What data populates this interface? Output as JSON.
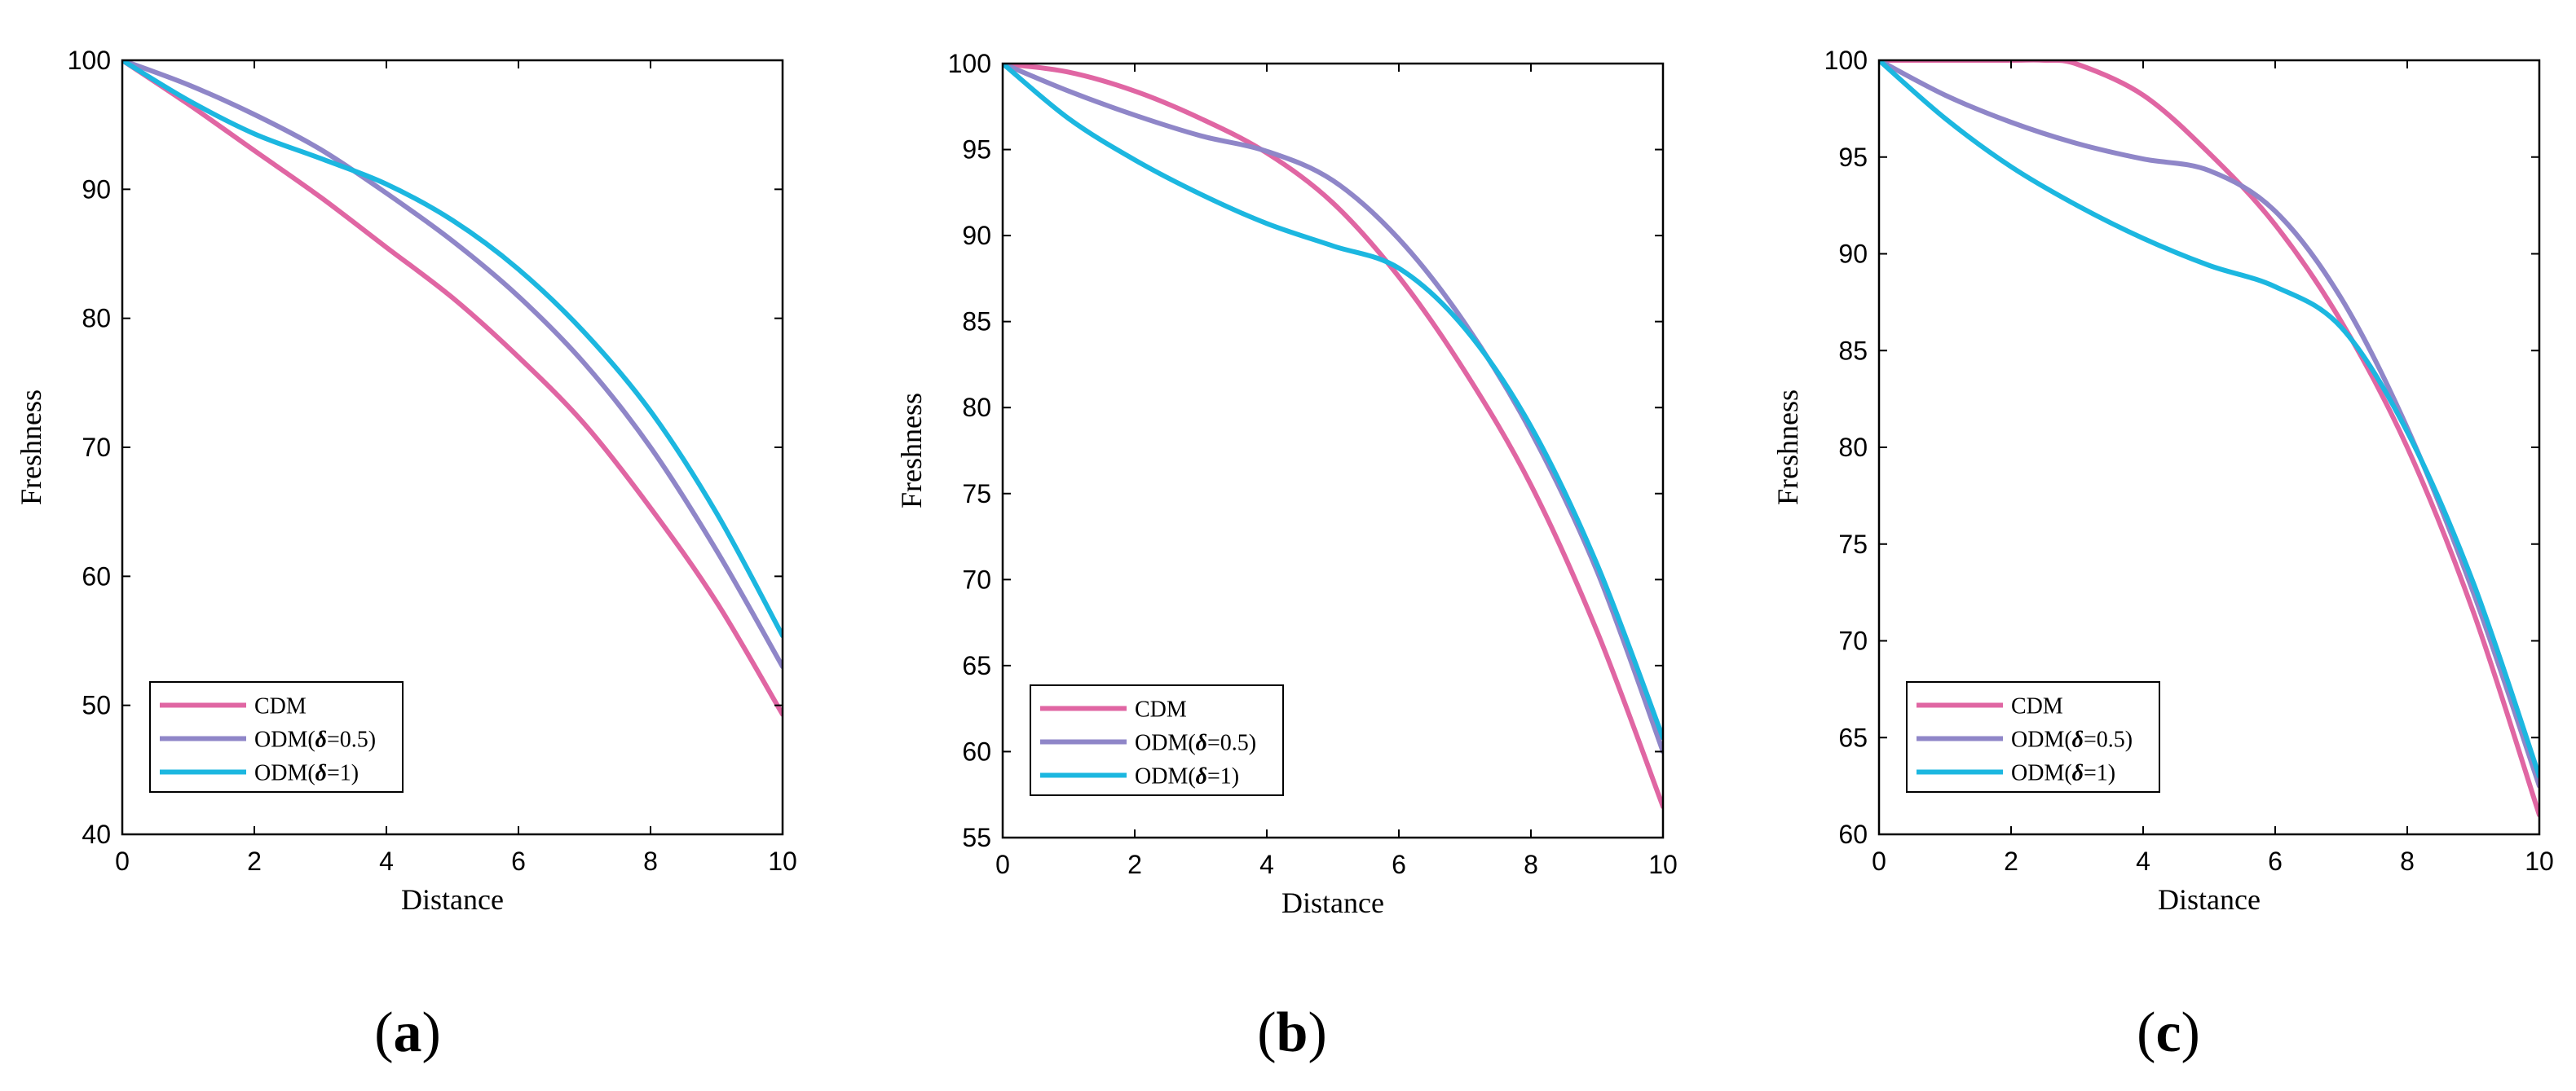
{
  "colors": {
    "CDM": "#e066a3",
    "ODM05": "#8f86c8",
    "ODM1": "#1cb7e0"
  },
  "chart_data": [
    {
      "type": "line",
      "panel_label": "a",
      "xlabel": "Distance",
      "ylabel": "Freshness",
      "xlim": [
        0,
        10
      ],
      "ylim": [
        40,
        100
      ],
      "xticks": [
        0,
        2,
        4,
        6,
        8,
        10
      ],
      "yticks": [
        40,
        50,
        60,
        70,
        80,
        90,
        100
      ],
      "legend_position": "bottom-left",
      "series": [
        {
          "name": "CDM",
          "legend_parts": [
            "CDM"
          ],
          "color_key": "CDM",
          "x": [
            0,
            1,
            2,
            3,
            4,
            5,
            6,
            7,
            8,
            9,
            10
          ],
          "y": [
            100,
            96.6,
            93,
            89.4,
            85.5,
            81.6,
            77,
            71.8,
            65.3,
            58,
            49.3
          ]
        },
        {
          "name": "ODM(δ=0.5)",
          "legend_parts": [
            "ODM(",
            "δ",
            "=0.5)"
          ],
          "color_key": "ODM05",
          "x": [
            0,
            1,
            2,
            3,
            4,
            5,
            6,
            7,
            8,
            9,
            10
          ],
          "y": [
            100,
            98.1,
            95.8,
            93.1,
            89.7,
            86,
            81.7,
            76.5,
            70,
            62,
            53
          ]
        },
        {
          "name": "ODM(δ=1)",
          "legend_parts": [
            "ODM(",
            "δ",
            "=1)"
          ],
          "color_key": "ODM1",
          "x": [
            0,
            1,
            2,
            3,
            4,
            5,
            6,
            7,
            8,
            9,
            10
          ],
          "y": [
            100,
            96.9,
            94.3,
            92.4,
            90.4,
            87.6,
            83.8,
            78.9,
            72.8,
            64.9,
            55.4
          ]
        }
      ]
    },
    {
      "type": "line",
      "panel_label": "b",
      "xlabel": "Distance",
      "ylabel": "Freshness",
      "xlim": [
        0,
        10
      ],
      "ylim": [
        55,
        100
      ],
      "xticks": [
        0,
        2,
        4,
        6,
        8,
        10
      ],
      "yticks": [
        55,
        60,
        65,
        70,
        75,
        80,
        85,
        90,
        95,
        100
      ],
      "legend_position": "bottom-left",
      "series": [
        {
          "name": "CDM",
          "legend_parts": [
            "CDM"
          ],
          "color_key": "CDM",
          "x": [
            0,
            1,
            2,
            3,
            4,
            5,
            6,
            7,
            8,
            9,
            10
          ],
          "y": [
            100,
            99.5,
            98.4,
            96.8,
            94.8,
            91.9,
            87.6,
            82.1,
            75.5,
            67,
            56.8
          ]
        },
        {
          "name": "ODM(δ=0.5)",
          "legend_parts": [
            "ODM(",
            "δ",
            "=0.5)"
          ],
          "color_key": "ODM05",
          "x": [
            0,
            1,
            2,
            3,
            4,
            5,
            6,
            7,
            8,
            9,
            10
          ],
          "y": [
            100,
            98.4,
            97,
            95.8,
            94.9,
            93.2,
            89.8,
            84.9,
            78.6,
            70.5,
            60
          ]
        },
        {
          "name": "ODM(δ=1)",
          "legend_parts": [
            "ODM(",
            "δ",
            "=1)"
          ],
          "color_key": "ODM1",
          "x": [
            0,
            1,
            2,
            3,
            4,
            5,
            6,
            7,
            8,
            9,
            10
          ],
          "y": [
            100,
            96.8,
            94.4,
            92.4,
            90.7,
            89.4,
            88.1,
            84.6,
            78.9,
            70.9,
            60.8
          ]
        }
      ]
    },
    {
      "type": "line",
      "panel_label": "c",
      "xlabel": "Distance",
      "ylabel": "Freshness",
      "xlim": [
        0,
        10
      ],
      "ylim": [
        60,
        100
      ],
      "xticks": [
        0,
        2,
        4,
        6,
        8,
        10
      ],
      "yticks": [
        60,
        65,
        70,
        75,
        80,
        85,
        90,
        95,
        100
      ],
      "legend_position": "bottom-left",
      "series": [
        {
          "name": "CDM",
          "legend_parts": [
            "CDM"
          ],
          "color_key": "CDM",
          "x": [
            0,
            1,
            2,
            2.5,
            3,
            4,
            5,
            6,
            7,
            8,
            9,
            10
          ],
          "y": [
            100,
            100,
            100,
            100,
            99.8,
            98.2,
            95.2,
            91.5,
            86.5,
            80,
            71.5,
            61
          ]
        },
        {
          "name": "ODM(δ=0.5)",
          "legend_parts": [
            "ODM(",
            "δ",
            "=0.5)"
          ],
          "color_key": "ODM05",
          "x": [
            0,
            1,
            2,
            3,
            4,
            5,
            6,
            7,
            8,
            9,
            10
          ],
          "y": [
            100,
            98.2,
            96.8,
            95.7,
            94.9,
            94.3,
            92.2,
            87.7,
            81,
            72.5,
            62.5
          ]
        },
        {
          "name": "ODM(δ=1)",
          "legend_parts": [
            "ODM(",
            "δ",
            "=1)"
          ],
          "color_key": "ODM1",
          "x": [
            0,
            1,
            2,
            3,
            4,
            5,
            6,
            7,
            8,
            9,
            10
          ],
          "y": [
            100,
            97,
            94.5,
            92.5,
            90.8,
            89.4,
            88.3,
            86.2,
            80.8,
            73,
            63
          ]
        }
      ]
    }
  ]
}
